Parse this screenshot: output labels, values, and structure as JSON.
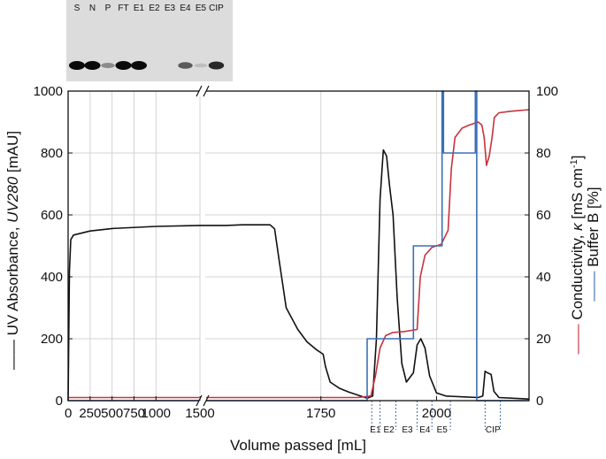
{
  "chart_data": {
    "type": "line",
    "xlabel": "Volume passed [mL]",
    "ylabel_left": {
      "prefix": "UV Absorbance, ",
      "italic": "UV280",
      "suffix": " [mAU]"
    },
    "ylabel_right_outer": {
      "prefix": "Conductivity, ",
      "italic": "κ",
      "suffix": " [mS cm",
      "sup": "-1",
      "end": "]"
    },
    "ylabel_right_inner": "Buffer B [%]",
    "x_segments": [
      {
        "range": [
          0,
          1500
        ],
        "tick_values": [
          0,
          250,
          500,
          750,
          1000,
          1500
        ],
        "tick_labels": [
          "0",
          "250",
          "500",
          "750",
          "1000",
          "1500"
        ]
      },
      {
        "range": [
          1500,
          2200
        ],
        "tick_values": [
          1750,
          2000
        ],
        "tick_labels": [
          "1750",
          "2000"
        ]
      }
    ],
    "y_left": {
      "range": [
        0,
        1000
      ],
      "ticks": [
        "0",
        "200",
        "400",
        "600",
        "800",
        "1000"
      ]
    },
    "y_right": {
      "range": [
        0,
        100
      ],
      "ticks": [
        "0",
        "20",
        "40",
        "60",
        "80",
        "100"
      ]
    },
    "grid": true,
    "series": [
      {
        "axis": "left",
        "color": "#111111",
        "points": [
          [
            0,
            0
          ],
          [
            15,
            420
          ],
          [
            30,
            520
          ],
          [
            60,
            535
          ],
          [
            250,
            548
          ],
          [
            500,
            556
          ],
          [
            1000,
            563
          ],
          [
            1500,
            566
          ],
          [
            1545,
            566
          ],
          [
            1580,
            568
          ],
          [
            1640,
            568
          ],
          [
            1650,
            555
          ],
          [
            1660,
            450
          ],
          [
            1675,
            300
          ],
          [
            1700,
            230
          ],
          [
            1720,
            190
          ],
          [
            1740,
            165
          ],
          [
            1755,
            150
          ],
          [
            1760,
            110
          ],
          [
            1770,
            60
          ],
          [
            1790,
            40
          ],
          [
            1810,
            28
          ],
          [
            1830,
            18
          ],
          [
            1850,
            8
          ],
          [
            1862,
            15
          ],
          [
            1870,
            200
          ],
          [
            1878,
            650
          ],
          [
            1885,
            810
          ],
          [
            1892,
            790
          ],
          [
            1898,
            700
          ],
          [
            1906,
            600
          ],
          [
            1915,
            330
          ],
          [
            1925,
            120
          ],
          [
            1935,
            60
          ],
          [
            1950,
            90
          ],
          [
            1958,
            180
          ],
          [
            1966,
            200
          ],
          [
            1975,
            170
          ],
          [
            1985,
            80
          ],
          [
            2000,
            25
          ],
          [
            2020,
            15
          ],
          [
            2060,
            12
          ],
          [
            2090,
            10
          ],
          [
            2100,
            15
          ],
          [
            2105,
            95
          ],
          [
            2110,
            90
          ],
          [
            2118,
            85
          ],
          [
            2124,
            30
          ],
          [
            2135,
            10
          ],
          [
            2190,
            6
          ],
          [
            2200,
            5
          ]
        ]
      },
      {
        "axis": "right",
        "color": "#c8323c",
        "points": [
          [
            0,
            1
          ],
          [
            1500,
            1
          ],
          [
            1830,
            1
          ],
          [
            1858,
            1.5
          ],
          [
            1868,
            8
          ],
          [
            1878,
            17
          ],
          [
            1890,
            21
          ],
          [
            1905,
            22
          ],
          [
            1930,
            22.3
          ],
          [
            1958,
            23
          ],
          [
            1965,
            40
          ],
          [
            1975,
            47
          ],
          [
            1990,
            49.5
          ],
          [
            2010,
            50.5
          ],
          [
            2025,
            55
          ],
          [
            2032,
            75
          ],
          [
            2040,
            85
          ],
          [
            2055,
            88
          ],
          [
            2070,
            89
          ],
          [
            2090,
            90
          ],
          [
            2098,
            89
          ],
          [
            2103,
            85
          ],
          [
            2108,
            76
          ],
          [
            2114,
            79
          ],
          [
            2120,
            85
          ],
          [
            2125,
            91.5
          ],
          [
            2135,
            93
          ],
          [
            2160,
            93.5
          ],
          [
            2200,
            94
          ]
        ]
      },
      {
        "axis": "right",
        "color": "#3b6fb6",
        "points": [
          [
            0,
            0
          ],
          [
            1500,
            0
          ],
          [
            1850,
            0
          ],
          [
            1850,
            20
          ],
          [
            1950,
            20
          ],
          [
            1950,
            50
          ],
          [
            2012,
            50
          ],
          [
            2012,
            100
          ],
          [
            2015,
            100
          ],
          [
            2015,
            80
          ],
          [
            2084,
            80
          ],
          [
            2084,
            100
          ],
          [
            2087,
            100
          ],
          [
            2087,
            0
          ],
          [
            2200,
            0
          ]
        ]
      }
    ],
    "fractions": [
      {
        "label": "E1",
        "x_mid": 1868
      },
      {
        "label": "E2",
        "x_mid": 1897
      },
      {
        "label": "E3",
        "x_mid": 1937
      },
      {
        "label": "E4",
        "x_mid": 1975
      },
      {
        "label": "E5",
        "x_mid": 2012
      },
      {
        "label": "CIP",
        "x_mid": 2122
      }
    ],
    "fraction_boundaries": [
      1860,
      1878,
      1912,
      1958,
      1990,
      2030,
      2105,
      2138
    ]
  },
  "gel": {
    "lanes": [
      {
        "label": "S",
        "band": 1.0
      },
      {
        "label": "N",
        "band": 1.0
      },
      {
        "label": "P",
        "band": 0.35
      },
      {
        "label": "FT",
        "band": 1.0
      },
      {
        "label": "E1",
        "band": 1.0
      },
      {
        "label": "E2",
        "band": 0.0
      },
      {
        "label": "E3",
        "band": 0.0
      },
      {
        "label": "E4",
        "band": 0.6
      },
      {
        "label": "E5",
        "band": 0.1
      },
      {
        "label": "CIP",
        "band": 0.85
      }
    ]
  }
}
